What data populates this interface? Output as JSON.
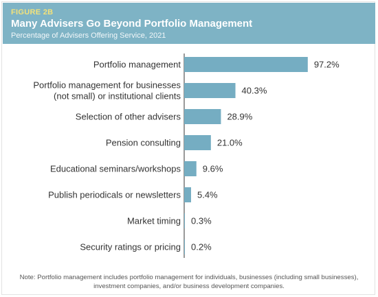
{
  "header": {
    "figure_label": "FIGURE 2B",
    "title": "Many Advisers Go Beyond Portfolio Management",
    "subtitle": "Percentage of Advisers Offering Service, 2021"
  },
  "note": "Note: Portfolio management includes portfolio management for individuals, businesses (including small businesses), investment companies, and/or business development companies.",
  "colors": {
    "bar": "#75adc2",
    "axis": "#555555",
    "header_bg": "#7eb3c5",
    "figure_label": "#f3e27a"
  },
  "chart_data": {
    "type": "bar",
    "orientation": "horizontal",
    "categories": [
      [
        "Portfolio management"
      ],
      [
        "Portfolio management for businesses",
        "(not small) or institutional clients"
      ],
      [
        "Selection of other advisers"
      ],
      [
        "Pension consulting"
      ],
      [
        "Educational seminars/workshops"
      ],
      [
        "Publish periodicals or newsletters"
      ],
      [
        "Market timing"
      ],
      [
        "Security ratings or pricing"
      ]
    ],
    "values": [
      97.2,
      40.3,
      28.9,
      21.0,
      9.6,
      5.4,
      0.3,
      0.2
    ],
    "value_labels": [
      "97.2%",
      "40.3%",
      "28.9%",
      "21.0%",
      "9.6%",
      "5.4%",
      "0.3%",
      "0.2%"
    ],
    "xlim": [
      0,
      100
    ],
    "grid": false,
    "legend": "none"
  }
}
